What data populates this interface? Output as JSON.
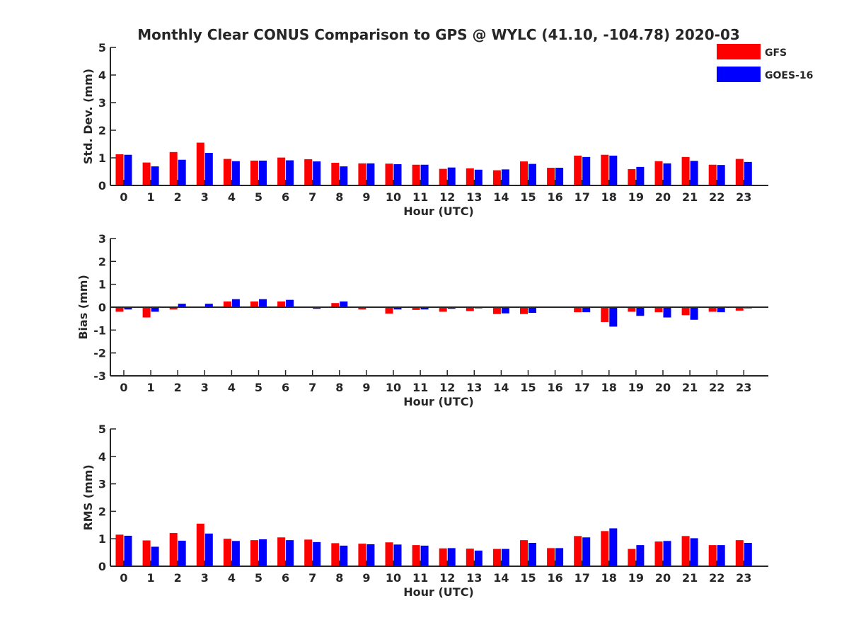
{
  "title": "Monthly Clear CONUS Comparison to GPS @ WYLC (41.10, -104.78) 2020-03",
  "colors": {
    "GFS": "#ff0000",
    "GOES-16": "#0000ff",
    "axis": "#262626"
  },
  "legend": {
    "placement": "top-right",
    "items": [
      "GFS",
      "GOES-16"
    ]
  },
  "chart_data": [
    {
      "type": "bar",
      "ylabel": "Std. Dev. (mm)",
      "xlabel": "Hour (UTC)",
      "ylim": [
        0,
        5
      ],
      "yticks": [
        0,
        1,
        2,
        3,
        4,
        5
      ],
      "categories": [
        "0",
        "1",
        "2",
        "3",
        "4",
        "5",
        "6",
        "7",
        "8",
        "9",
        "10",
        "11",
        "12",
        "13",
        "14",
        "15",
        "16",
        "17",
        "18",
        "19",
        "20",
        "21",
        "22",
        "23"
      ],
      "series": [
        {
          "name": "GFS",
          "values": [
            1.13,
            0.83,
            1.21,
            1.55,
            0.96,
            0.9,
            1.01,
            0.95,
            0.82,
            0.8,
            0.79,
            0.75,
            0.6,
            0.62,
            0.55,
            0.87,
            0.64,
            1.08,
            1.11,
            0.59,
            0.88,
            1.03,
            0.75,
            0.96
          ]
        },
        {
          "name": "GOES-16",
          "values": [
            1.11,
            0.69,
            0.93,
            1.18,
            0.88,
            0.9,
            0.91,
            0.87,
            0.69,
            0.8,
            0.77,
            0.75,
            0.65,
            0.57,
            0.58,
            0.78,
            0.64,
            1.03,
            1.08,
            0.67,
            0.8,
            0.89,
            0.74,
            0.85
          ]
        }
      ],
      "grid": false
    },
    {
      "type": "bar",
      "ylabel": "Bias (mm)",
      "xlabel": "Hour (UTC)",
      "ylim": [
        -3,
        3
      ],
      "yticks": [
        -3,
        -2,
        -1,
        0,
        1,
        2,
        3
      ],
      "categories": [
        "0",
        "1",
        "2",
        "3",
        "4",
        "5",
        "6",
        "7",
        "8",
        "9",
        "10",
        "11",
        "12",
        "13",
        "14",
        "15",
        "16",
        "17",
        "18",
        "19",
        "20",
        "21",
        "22",
        "23"
      ],
      "series": [
        {
          "name": "GFS",
          "values": [
            -0.2,
            -0.45,
            -0.1,
            -0.03,
            0.25,
            0.25,
            0.25,
            -0.02,
            0.18,
            -0.1,
            -0.28,
            -0.12,
            -0.2,
            -0.17,
            -0.3,
            -0.3,
            0.0,
            -0.22,
            -0.65,
            -0.2,
            -0.22,
            -0.35,
            -0.2,
            -0.15
          ]
        },
        {
          "name": "GOES-16",
          "values": [
            -0.1,
            -0.2,
            0.15,
            0.15,
            0.35,
            0.35,
            0.32,
            -0.07,
            0.25,
            0.0,
            -0.1,
            -0.1,
            -0.07,
            -0.05,
            -0.27,
            -0.25,
            0.0,
            -0.22,
            -0.85,
            -0.38,
            -0.45,
            -0.55,
            -0.22,
            -0.05
          ]
        }
      ],
      "grid": false
    },
    {
      "type": "bar",
      "ylabel": "RMS (mm)",
      "xlabel": "Hour (UTC)",
      "ylim": [
        0,
        5
      ],
      "yticks": [
        0,
        1,
        2,
        3,
        4,
        5
      ],
      "categories": [
        "0",
        "1",
        "2",
        "3",
        "4",
        "5",
        "6",
        "7",
        "8",
        "9",
        "10",
        "11",
        "12",
        "13",
        "14",
        "15",
        "16",
        "17",
        "18",
        "19",
        "20",
        "21",
        "22",
        "23"
      ],
      "series": [
        {
          "name": "GFS",
          "values": [
            1.15,
            0.94,
            1.21,
            1.55,
            1.0,
            0.95,
            1.05,
            0.97,
            0.84,
            0.82,
            0.87,
            0.77,
            0.65,
            0.64,
            0.63,
            0.95,
            0.66,
            1.1,
            1.28,
            0.63,
            0.9,
            1.1,
            0.77,
            0.95
          ]
        },
        {
          "name": "GOES-16",
          "values": [
            1.11,
            0.71,
            0.93,
            1.19,
            0.92,
            0.98,
            0.95,
            0.88,
            0.75,
            0.8,
            0.79,
            0.75,
            0.66,
            0.57,
            0.63,
            0.85,
            0.66,
            1.05,
            1.38,
            0.77,
            0.92,
            1.02,
            0.77,
            0.85
          ]
        }
      ],
      "grid": false
    }
  ]
}
